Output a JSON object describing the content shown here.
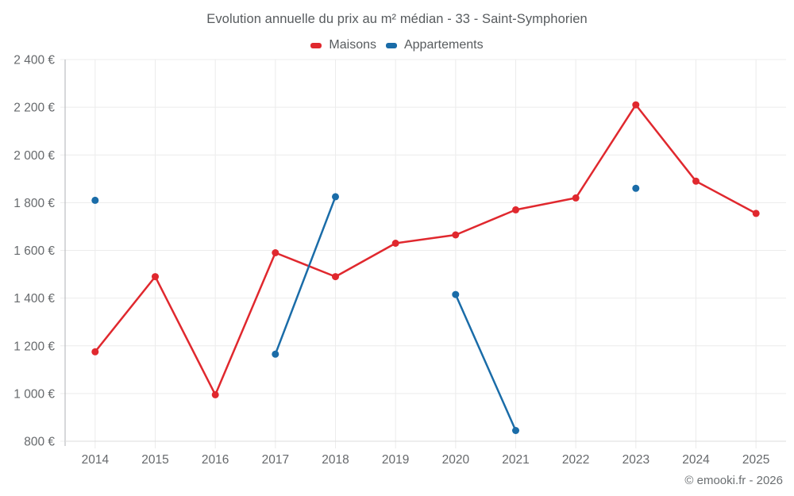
{
  "page": {
    "title": "Evolution annuelle du prix au m² médian - 33 - Saint-Symphorien",
    "watermark": "© emooki.fr - 2026"
  },
  "legend": {
    "items": [
      {
        "label": "Maisons",
        "color": "#e0282e"
      },
      {
        "label": "Appartements",
        "color": "#1a6ca8"
      }
    ]
  },
  "chart_data": {
    "type": "line",
    "title": "Evolution annuelle du prix au m² médian - 33 - Saint-Symphorien",
    "xlabel": "",
    "ylabel": "",
    "categories": [
      "2014",
      "2015",
      "2016",
      "2017",
      "2018",
      "2019",
      "2020",
      "2021",
      "2022",
      "2023",
      "2024",
      "2025"
    ],
    "series": [
      {
        "name": "Maisons",
        "slug": "maisons",
        "color": "#e0282e",
        "values": [
          1175,
          1490,
          995,
          1590,
          1490,
          1630,
          1665,
          1770,
          1820,
          2210,
          1890,
          1755
        ]
      },
      {
        "name": "Appartements",
        "slug": "appartements",
        "color": "#1a6ca8",
        "values": [
          1810,
          null,
          null,
          1165,
          1825,
          null,
          1415,
          845,
          null,
          1860,
          null,
          null
        ]
      }
    ],
    "ylim": [
      800,
      2400
    ],
    "y_ticks": [
      {
        "value": 800,
        "label": "800 €"
      },
      {
        "value": 1000,
        "label": "1 000 €"
      },
      {
        "value": 1200,
        "label": "1 200 €"
      },
      {
        "value": 1400,
        "label": "1 400 €"
      },
      {
        "value": 1600,
        "label": "1 600 €"
      },
      {
        "value": 1800,
        "label": "1 800 €"
      },
      {
        "value": 2000,
        "label": "2 000 €"
      },
      {
        "value": 2200,
        "label": "2 200 €"
      },
      {
        "value": 2400,
        "label": "2 400 €"
      }
    ],
    "grid": true,
    "legend_position": "top",
    "style": {
      "grid": "#ececec",
      "axis": "#afb2b5",
      "axis_light": "#dcdcdc",
      "tick_text": "#66696c",
      "point_radius": 4.5,
      "line_width": 2.5
    }
  }
}
